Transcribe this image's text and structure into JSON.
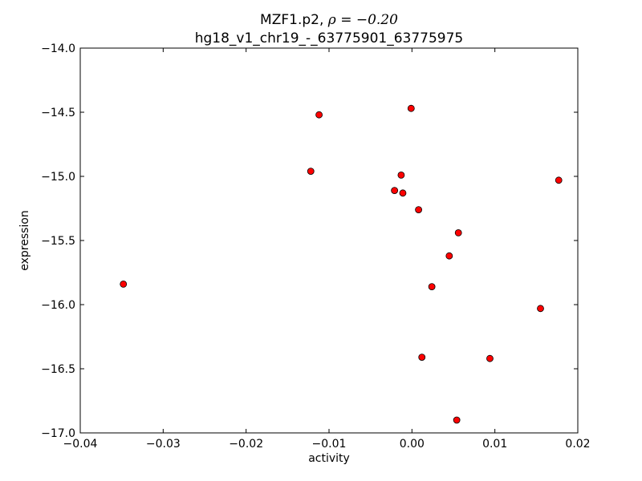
{
  "chart_data": {
    "type": "scatter",
    "title_line1_prefix": "MZF1.p2, ",
    "title_rho_symbol": "ρ",
    "title_rho_value": " = −0.20",
    "title_line2": "hg18_v1_chr19_-_63775901_63775975",
    "xlabel": "activity",
    "ylabel": "expression",
    "xlim": [
      -0.04,
      0.02
    ],
    "ylim": [
      -17.0,
      -14.0
    ],
    "xticks": [
      -0.04,
      -0.03,
      -0.02,
      -0.01,
      0.0,
      0.01,
      0.02
    ],
    "xtick_labels": [
      "−0.04",
      "−0.03",
      "−0.02",
      "−0.01",
      "0.00",
      "0.01",
      "0.02"
    ],
    "yticks": [
      -14.0,
      -14.5,
      -15.0,
      -15.5,
      -16.0,
      -16.5,
      -17.0
    ],
    "ytick_labels": [
      "−14.0",
      "−14.5",
      "−15.0",
      "−15.5",
      "−16.0",
      "−16.5",
      "−17.0"
    ],
    "marker_color": "#ff0000",
    "marker_edge_color": "#000000",
    "grid": false,
    "points": [
      {
        "x": -0.0348,
        "y": -15.84
      },
      {
        "x": -0.0112,
        "y": -14.52
      },
      {
        "x": -0.0122,
        "y": -14.96
      },
      {
        "x": -0.0001,
        "y": -14.47
      },
      {
        "x": -0.0013,
        "y": -14.99
      },
      {
        "x": -0.0021,
        "y": -15.11
      },
      {
        "x": -0.0011,
        "y": -15.13
      },
      {
        "x": 0.0008,
        "y": -15.26
      },
      {
        "x": 0.0056,
        "y": -15.44
      },
      {
        "x": 0.0045,
        "y": -15.62
      },
      {
        "x": 0.0024,
        "y": -15.86
      },
      {
        "x": 0.0012,
        "y": -16.41
      },
      {
        "x": 0.0094,
        "y": -16.42
      },
      {
        "x": 0.0155,
        "y": -16.03
      },
      {
        "x": 0.0177,
        "y": -15.03
      },
      {
        "x": 0.0054,
        "y": -16.9
      }
    ]
  }
}
